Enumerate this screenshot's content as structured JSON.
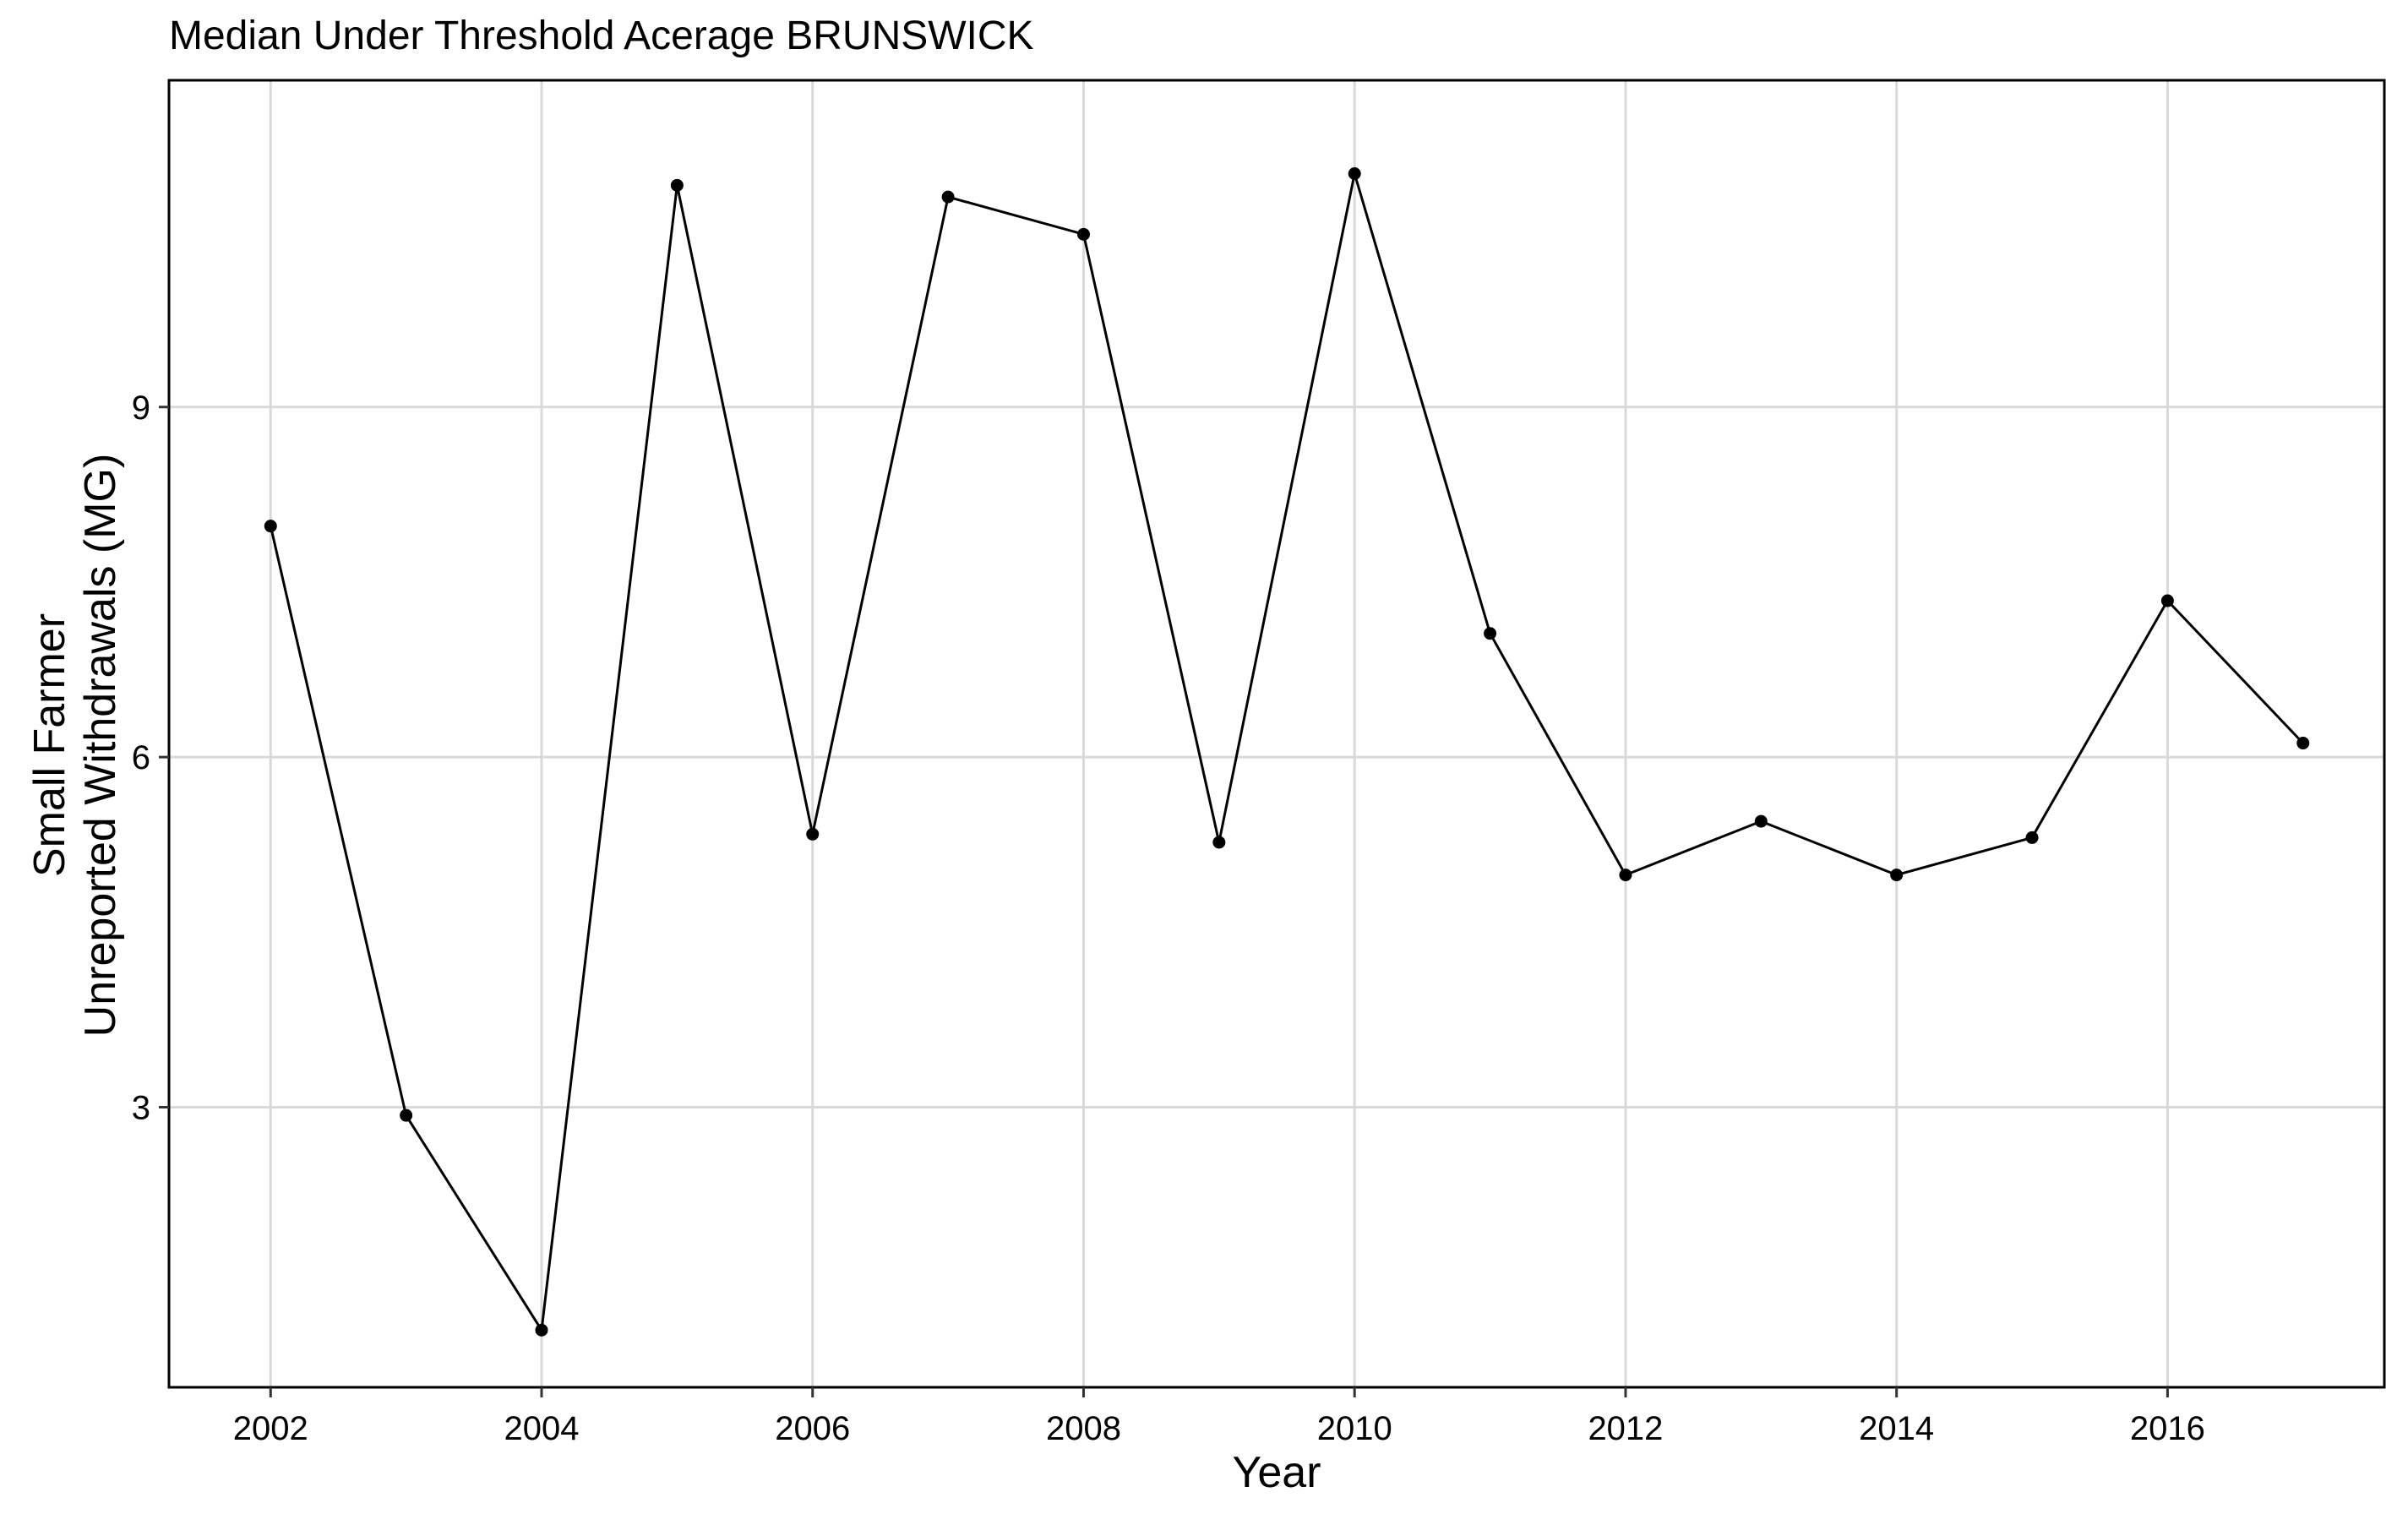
{
  "chart_data": {
    "type": "line",
    "title": "Median Under Threshold Acerage BRUNSWICK",
    "xlabel": "Year",
    "ylabel_lines": [
      "Small Farmer",
      "Unreported Withdrawals (MG)"
    ],
    "x_ticks": [
      2002,
      2004,
      2006,
      2008,
      2010,
      2012,
      2014,
      2016
    ],
    "y_ticks": [
      3,
      6,
      9
    ],
    "xlim": [
      2001.25,
      2017.6
    ],
    "ylim": [
      0.6,
      11.8
    ],
    "grid": true,
    "legend": "none",
    "series": [
      {
        "x": [
          2002,
          2003,
          2004,
          2005,
          2006,
          2007,
          2008,
          2009,
          2010,
          2011,
          2012,
          2013,
          2014,
          2015,
          2016,
          2017
        ],
        "y": [
          7.98,
          2.93,
          1.09,
          10.9,
          5.34,
          10.8,
          10.48,
          5.27,
          11.0,
          7.06,
          4.99,
          5.45,
          4.99,
          5.31,
          7.34,
          6.12
        ],
        "color": "#000000"
      }
    ],
    "colors": {
      "line": "#000000",
      "grid": "#d9d9d9",
      "panel_border": "#000000",
      "text": "#000000"
    }
  }
}
